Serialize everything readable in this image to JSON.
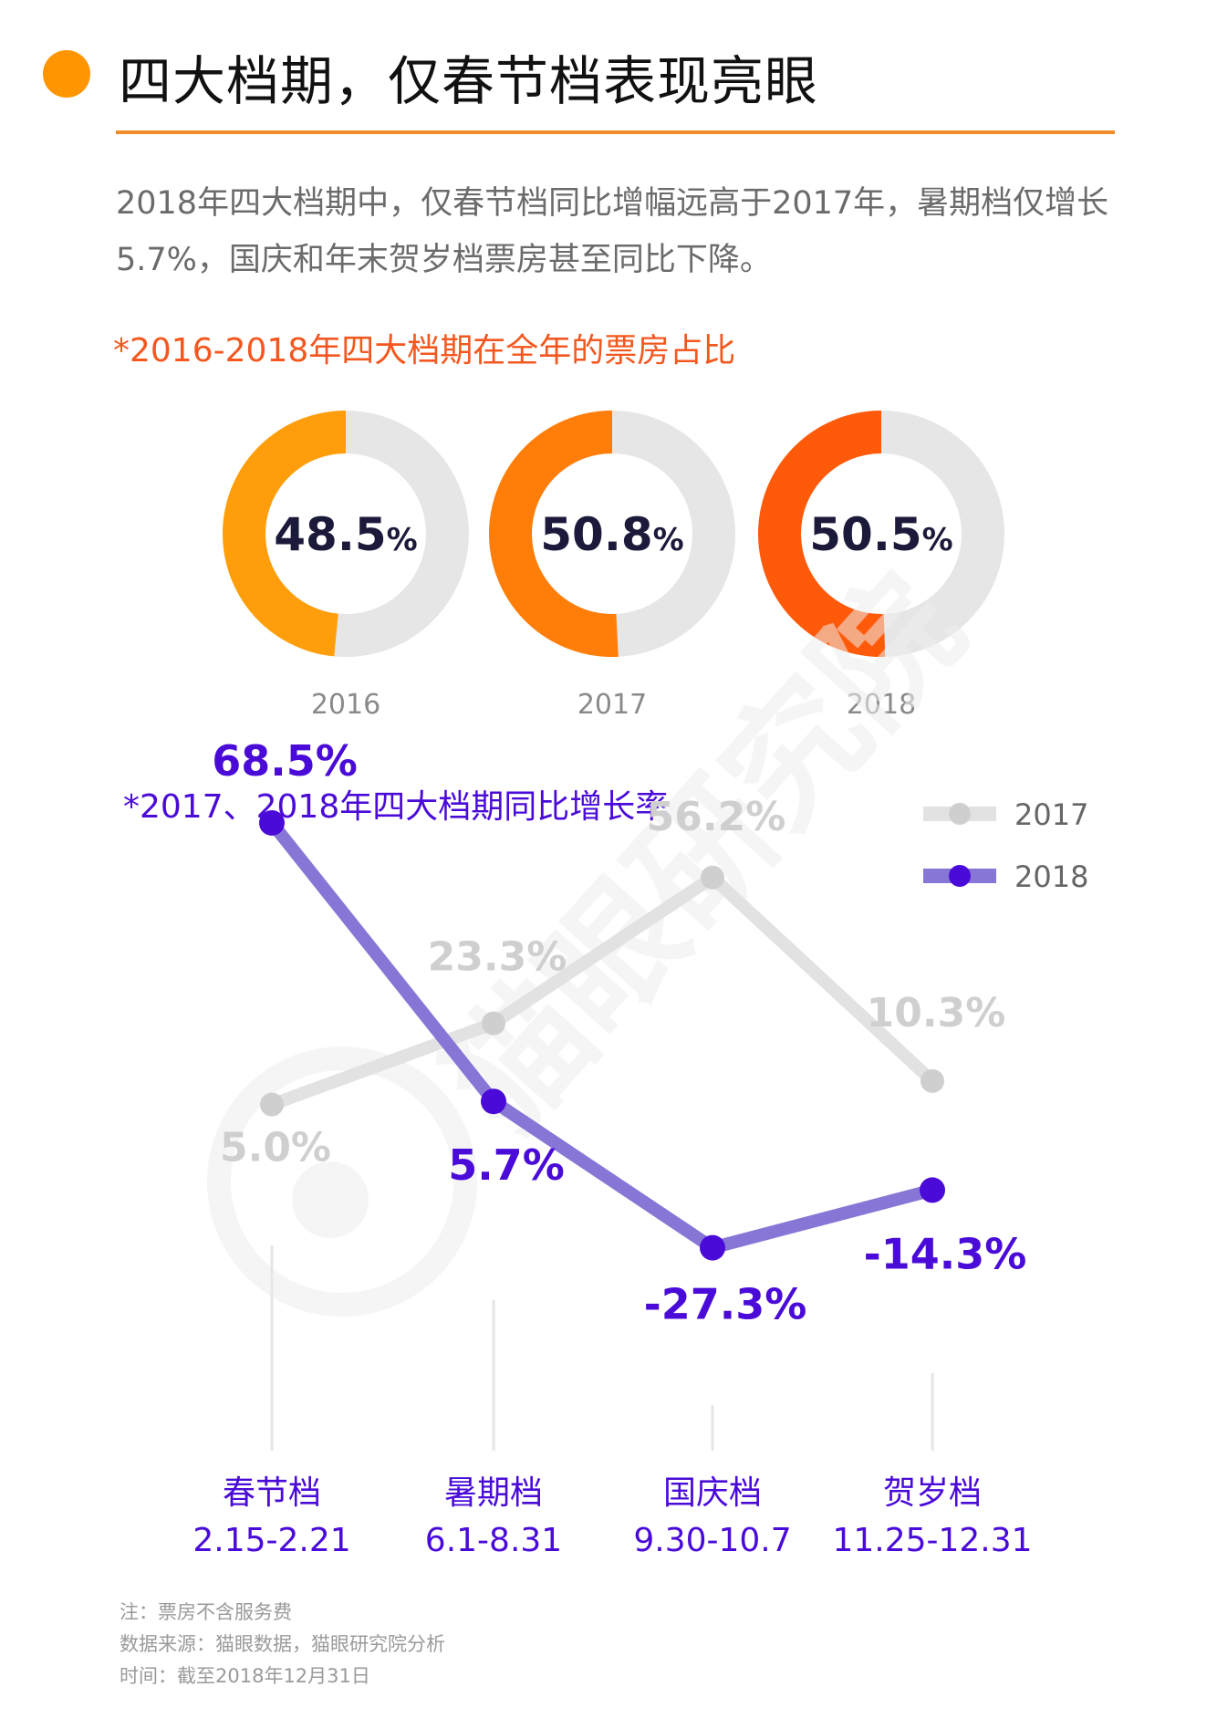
{
  "header": {
    "title": "四大档期，仅春节档表现亮眼",
    "intro_line1": "2018年四大档期中，仅春节档同比增幅远高于2017年，暑期档仅增长",
    "intro_line2": "5.7%，国庆和年末贺岁档票房甚至同比下降。"
  },
  "colors": {
    "accent": "#FF9500",
    "donut_2016": "#FF9E0A",
    "donut_2017": "#FF7E0A",
    "donut_2018": "#FF5A0A",
    "donut_rest": "#E6E6E6",
    "line_2017": "#E2E2E2",
    "line_2018": "#8776D6",
    "dot_2018": "#4A0BD8",
    "label_2018": "#4A0BD8",
    "label_2017": "#CFCFCF",
    "category_text": "#4A0BD8"
  },
  "chart_data": [
    {
      "type": "pie",
      "variant": "donut",
      "title": "*2016-2018年四大档期在全年的票房占比",
      "items": [
        {
          "year": "2016",
          "share": 48.5,
          "value_text": "48.5",
          "unit": "%"
        },
        {
          "year": "2017",
          "share": 50.8,
          "value_text": "50.8",
          "unit": "%"
        },
        {
          "year": "2018",
          "share": 50.5,
          "value_text": "50.5",
          "unit": "%"
        }
      ]
    },
    {
      "type": "line",
      "title": "*2017、2018年四大档期同比增长率",
      "categories": [
        "春节档",
        "暑期档",
        "国庆档",
        "贺岁档"
      ],
      "category_dates": [
        "2.15-2.21",
        "6.1-8.31",
        "9.30-10.7",
        "11.25-12.31"
      ],
      "series": [
        {
          "name": "2017",
          "values": [
            5.0,
            23.3,
            56.2,
            10.3
          ],
          "labels": [
            "5.0%",
            "23.3%",
            "56.2%",
            "10.3%"
          ]
        },
        {
          "name": "2018",
          "values": [
            68.5,
            5.7,
            -27.3,
            -14.3
          ],
          "labels": [
            "68.5%",
            "5.7%",
            "-27.3%",
            "-14.3%"
          ]
        }
      ],
      "legend": [
        "2017",
        "2018"
      ],
      "legend_position": "top-right",
      "unit": "%"
    }
  ],
  "watermark": "猫眼研究院",
  "footnotes": {
    "note": "注：票房不含服务费",
    "source": "数据来源：猫眼数据，猫眼研究院分析",
    "time": "时间：截至2018年12月31日"
  }
}
